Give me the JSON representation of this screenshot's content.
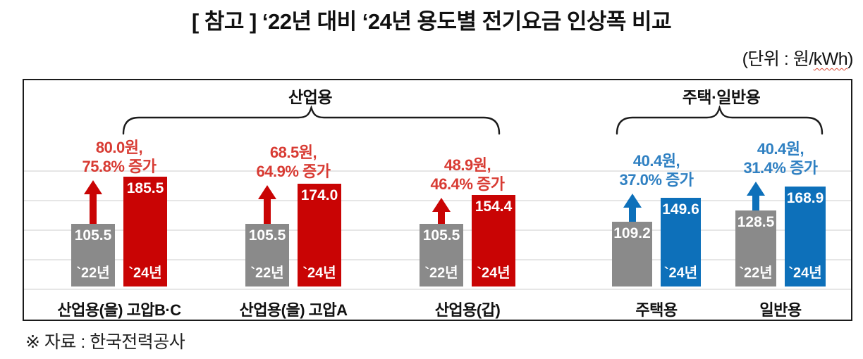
{
  "header": {
    "title": "[ 참고 ] ‘22년 대비 ‘24년 용도별 전기요금 인상폭 비교",
    "unit": {
      "prefix": "(단위 : 원/",
      "underlined": "kWh",
      "suffix": ")"
    }
  },
  "footer": {
    "source": "※ 자료 : 한국전력공사"
  },
  "colors": {
    "industrial_bar": "#c90404",
    "residential_bar": "#0d70ba",
    "base_year_bar": "#8a8a8a",
    "industrial_annotation": "#d83b33",
    "residential_annotation": "#2f80c2",
    "gridline": "#e6e6e6",
    "border": "#1b1b1b",
    "bar_label_text": "#ffffff"
  },
  "chart_data": {
    "type": "bar",
    "title": "‘22년 대비 ‘24년 용도별 전기요금 인상폭 비교",
    "unit": "원/kWh",
    "ylim": [
      0,
      200
    ],
    "gridline_values": [
      0,
      50,
      100,
      150,
      200
    ],
    "value_axis_visible": false,
    "legend_position": "none",
    "sections": [
      {
        "label": "산업용",
        "group_indexes": [
          0,
          1,
          2
        ]
      },
      {
        "label": "주택·일반용",
        "group_indexes": [
          3,
          4
        ]
      }
    ],
    "categories": [
      "산업용(을) 고압B·C",
      "산업용(을) 고압A",
      "산업용(갑)",
      "주택용",
      "일반용"
    ],
    "series": [
      {
        "name": "`22년",
        "values": [
          105.5,
          105.5,
          105.5,
          109.2,
          128.5
        ]
      },
      {
        "name": "`24년",
        "values": [
          185.5,
          174.0,
          154.4,
          149.6,
          168.9
        ]
      }
    ],
    "groups": [
      {
        "category": "산업용(을) 고압B·C",
        "section": "산업용",
        "palette": "industrial",
        "value_2022": 105.5,
        "value_2024": 185.5,
        "label_2022": "105.5",
        "label_2024": "185.5",
        "year_2022": "`22년",
        "year_2024": "`24년",
        "increase_line1": "80.0원,",
        "increase_line2": "75.8% 증가"
      },
      {
        "category": "산업용(을) 고압A",
        "section": "산업용",
        "palette": "industrial",
        "value_2022": 105.5,
        "value_2024": 174.0,
        "label_2022": "105.5",
        "label_2024": "174.0",
        "year_2022": "`22년",
        "year_2024": "`24년",
        "increase_line1": "68.5원,",
        "increase_line2": "64.9% 증가"
      },
      {
        "category": "산업용(갑)",
        "section": "산업용",
        "palette": "industrial",
        "value_2022": 105.5,
        "value_2024": 154.4,
        "label_2022": "105.5",
        "label_2024": "154.4",
        "year_2022": "`22년",
        "year_2024": "`24년",
        "increase_line1": "48.9원,",
        "increase_line2": "46.4% 증가"
      },
      {
        "category": "주택용",
        "section": "주택·일반용",
        "palette": "residential",
        "value_2022": 109.2,
        "value_2024": 149.6,
        "label_2022": "109.2",
        "label_2024": "149.6",
        "year_2022": "",
        "year_2024": "`24년",
        "increase_line1": "40.4원,",
        "increase_line2": "37.0% 증가"
      },
      {
        "category": "일반용",
        "section": "주택·일반용",
        "palette": "residential",
        "value_2022": 128.5,
        "value_2024": 168.9,
        "label_2022": "128.5",
        "label_2024": "168.9",
        "year_2022": "`22년",
        "year_2024": "`24년",
        "increase_line1": "40.4원,",
        "increase_line2": "31.4% 증가"
      }
    ]
  }
}
